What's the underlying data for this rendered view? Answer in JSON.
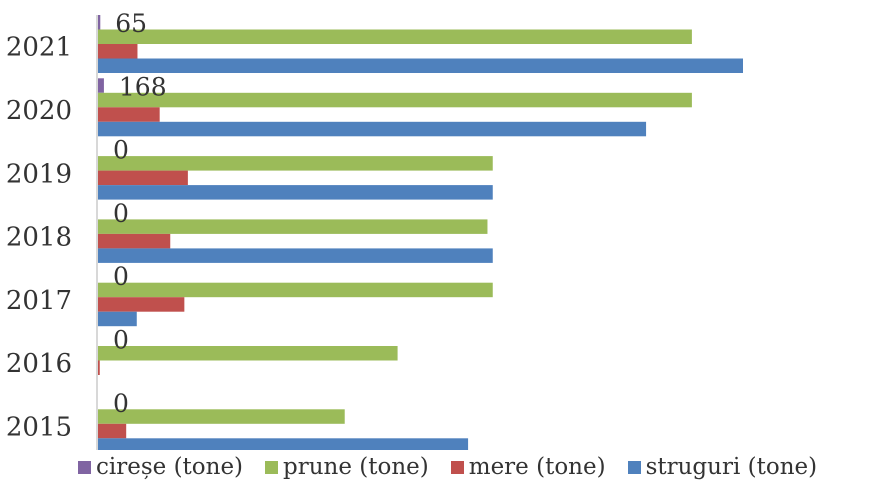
{
  "chart_data": {
    "type": "bar",
    "orientation": "horizontal",
    "categories": [
      "2015",
      "2016",
      "2017",
      "2018",
      "2019",
      "2020",
      "2021"
    ],
    "series": [
      {
        "name": "cireșe (tone)",
        "color": "#8064A2",
        "values": [
          0,
          0,
          0,
          0,
          0,
          168,
          65
        ]
      },
      {
        "name": "prune (tone)",
        "color": "#9BBB59",
        "values": [
          7000,
          8500,
          11200,
          11050,
          11200,
          16850,
          16850
        ]
      },
      {
        "name": "mere (tone)",
        "color": "#C0504D",
        "values": [
          800,
          50,
          2450,
          2050,
          2550,
          1750,
          1120
        ]
      },
      {
        "name": "struguri (tone)",
        "color": "#4F81BD",
        "values": [
          10500,
          0,
          1100,
          11200,
          11200,
          15550,
          18300
        ]
      }
    ],
    "data_labels_series": "cireșe (tone)",
    "data_labels": [
      "0",
      "0",
      "0",
      "0",
      "0",
      "168",
      "65"
    ],
    "xlim": [
      0,
      18300
    ],
    "x_axis_visible": false,
    "grid": false,
    "legend_position": "bottom"
  }
}
